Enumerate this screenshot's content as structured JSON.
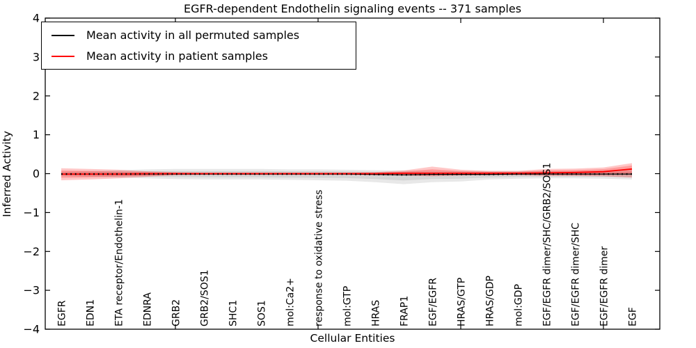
{
  "figure": {
    "title": "EGFR-dependent Endothelin signaling events -- 371 samples",
    "background": "#ffffff"
  },
  "legend": {
    "position": "upper left",
    "entries": [
      {
        "label": "Mean activity in all permuted samples",
        "color": "#000000"
      },
      {
        "label": "Mean activity in patient samples",
        "color": "#ff0000"
      }
    ]
  },
  "chart_data": {
    "type": "line",
    "title": "EGFR-dependent Endothelin signaling events -- 371 samples",
    "xlabel": "Cellular Entities",
    "ylabel": "Inferred Activity",
    "ylim": [
      -4,
      4
    ],
    "yticks": [
      4,
      3,
      2,
      1,
      0,
      -1,
      -2,
      -3,
      -4
    ],
    "yticklabels": [
      "4",
      "3",
      "2",
      "1",
      "0",
      "−1",
      "−2",
      "−3",
      "−4"
    ],
    "xtick_marks_at_indices": [
      4,
      9,
      14,
      19
    ],
    "grid": false,
    "legend_position": "upper left",
    "categories": [
      "EGFR",
      "EDN1",
      "ETA receptor/Endothelin-1",
      "EDNRA",
      "GRB2",
      "GRB2/SOS1",
      "SHC1",
      "SOS1",
      "mol:Ca2+",
      "response to oxidative stress",
      "mol:GTP",
      "HRAS",
      "FRAP1",
      "EGF/EGFR",
      "HRAS/GTP",
      "HRAS/GDP",
      "mol:GDP",
      "EGF/EGFR dimer/SHC/GRB2/SOS1",
      "EGF/EGFR dimer/SHC",
      "EGF/EGFR dimer",
      "EGF"
    ],
    "series": [
      {
        "name": "Mean activity in all permuted samples",
        "color": "#000000",
        "line_style": "solid with dotted overlay",
        "band_color": "rgba(110,110,110,0.16)",
        "values": [
          -0.01,
          -0.01,
          -0.01,
          -0.01,
          -0.01,
          -0.01,
          -0.01,
          -0.01,
          -0.01,
          -0.01,
          -0.01,
          -0.02,
          -0.03,
          -0.02,
          -0.02,
          -0.02,
          -0.01,
          -0.01,
          -0.01,
          -0.01,
          -0.01
        ],
        "band_upper": [
          0.05,
          0.07,
          0.09,
          0.11,
          0.12,
          0.12,
          0.12,
          0.12,
          0.11,
          0.11,
          0.1,
          0.09,
          0.08,
          0.07,
          0.07,
          0.07,
          0.07,
          0.07,
          0.07,
          0.08,
          0.09
        ],
        "band_lower": [
          -0.06,
          -0.08,
          -0.1,
          -0.12,
          -0.14,
          -0.15,
          -0.15,
          -0.15,
          -0.16,
          -0.17,
          -0.18,
          -0.22,
          -0.27,
          -0.22,
          -0.2,
          -0.15,
          -0.13,
          -0.12,
          -0.12,
          -0.13,
          -0.15
        ]
      },
      {
        "name": "Mean activity in patient samples",
        "color": "#ff0000",
        "line_style": "solid",
        "band_color": "rgba(255,0,0,0.22)",
        "values": [
          -0.01,
          -0.01,
          -0.01,
          0,
          0,
          0,
          0,
          0,
          0,
          0,
          0,
          0,
          0.01,
          0.01,
          0.01,
          0.01,
          0.01,
          0.02,
          0.03,
          0.05,
          0.12
        ],
        "band_upper": [
          0.14,
          0.12,
          0.1,
          0.06,
          0.04,
          0.03,
          0.03,
          0.03,
          0.03,
          0.03,
          0.03,
          0.04,
          0.08,
          0.18,
          0.1,
          0.07,
          0.07,
          0.12,
          0.13,
          0.16,
          0.27
        ],
        "band_lower": [
          -0.17,
          -0.15,
          -0.12,
          -0.08,
          -0.04,
          -0.03,
          -0.03,
          -0.03,
          -0.03,
          -0.03,
          -0.03,
          -0.04,
          -0.05,
          -0.07,
          -0.05,
          -0.04,
          -0.04,
          -0.06,
          -0.06,
          -0.07,
          -0.1
        ]
      }
    ]
  }
}
